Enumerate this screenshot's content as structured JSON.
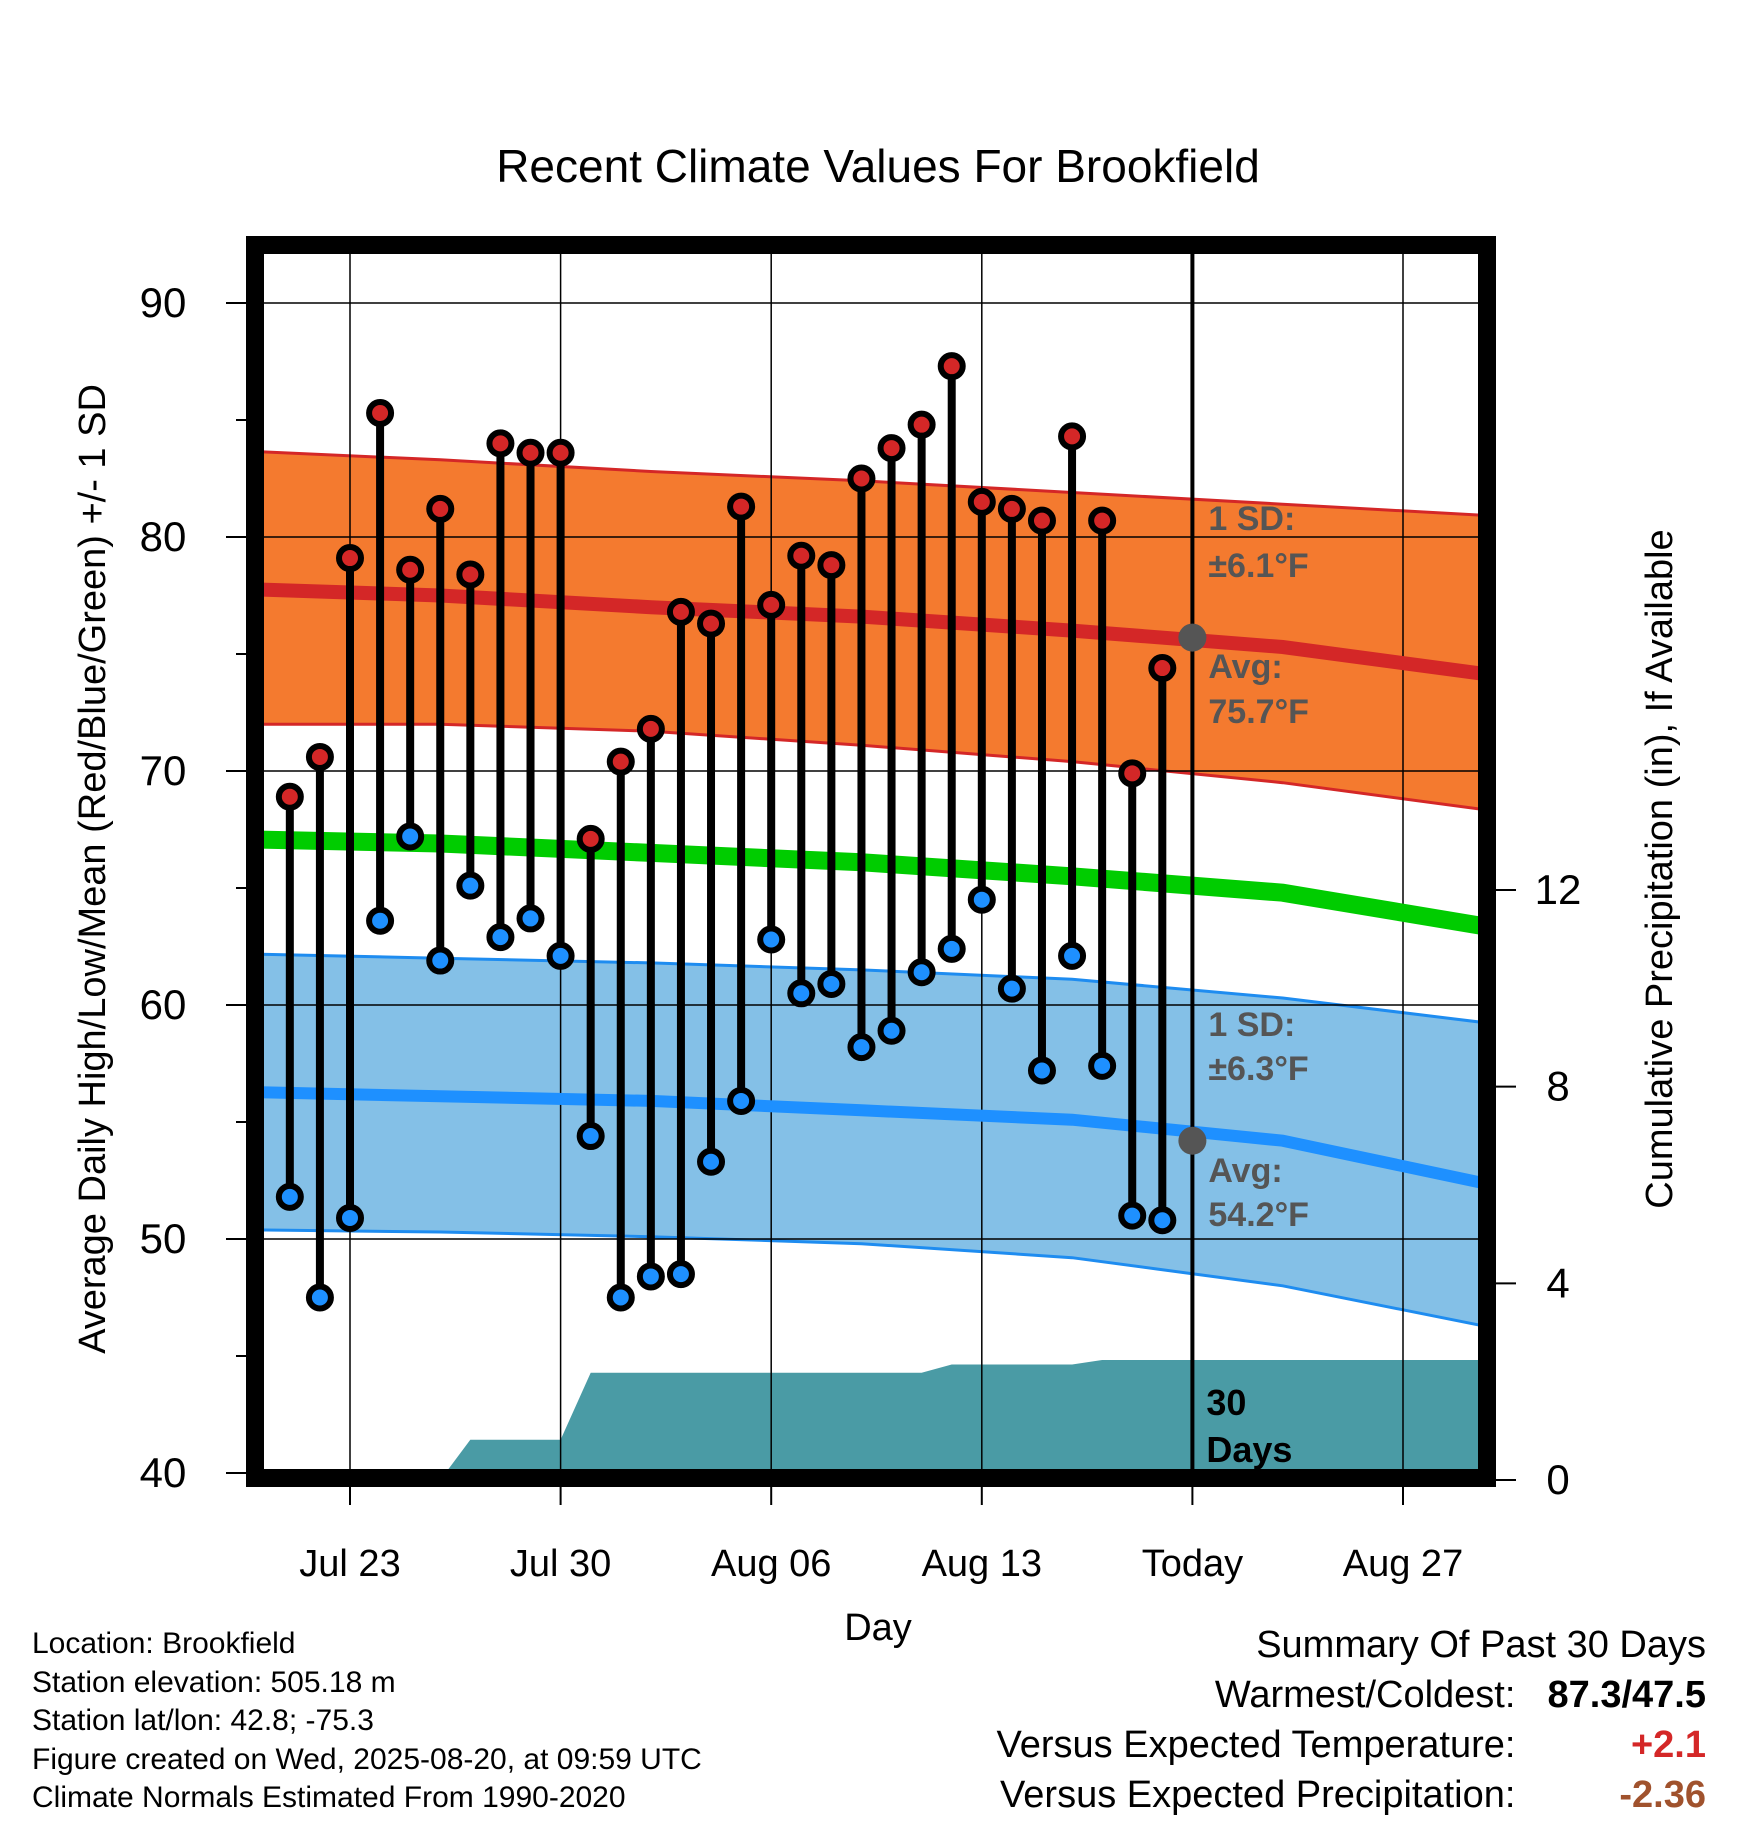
{
  "chart_data": {
    "type": "line",
    "title": "Recent Climate Values For Brookfield",
    "xlabel": "Day",
    "ylabel_left": "Average Daily High/Low/Mean (Red/Blue/Green) +/- 1 SD",
    "ylabel_right": "Cumulative Precipitation (in), If Available",
    "ylim": [
      40,
      90
    ],
    "y_ticks": [
      "40",
      "50",
      "60",
      "70",
      "80",
      "90"
    ],
    "y2lim": [
      0,
      12
    ],
    "y2_ticks": [
      "0",
      "4",
      "8",
      "12"
    ],
    "xlim": [
      "2025-07-19",
      "2025-08-30"
    ],
    "x_ticks": [
      {
        "date": "2025-07-23",
        "label": "Jul 23"
      },
      {
        "date": "2025-07-30",
        "label": "Jul 30"
      },
      {
        "date": "2025-08-06",
        "label": "Aug 06"
      },
      {
        "date": "2025-08-13",
        "label": "Aug 13"
      },
      {
        "date": "2025-08-20",
        "label": "Today"
      },
      {
        "date": "2025-08-27",
        "label": "Aug 27"
      }
    ],
    "today": "2025-08-20",
    "daily": {
      "dates": [
        "2025-07-21",
        "2025-07-22",
        "2025-07-23",
        "2025-07-24",
        "2025-07-25",
        "2025-07-26",
        "2025-07-27",
        "2025-07-28",
        "2025-07-29",
        "2025-07-30",
        "2025-07-31",
        "2025-08-01",
        "2025-08-02",
        "2025-08-03",
        "2025-08-04",
        "2025-08-05",
        "2025-08-06",
        "2025-08-07",
        "2025-08-08",
        "2025-08-09",
        "2025-08-10",
        "2025-08-11",
        "2025-08-12",
        "2025-08-13",
        "2025-08-14",
        "2025-08-15",
        "2025-08-16",
        "2025-08-17",
        "2025-08-18",
        "2025-08-19"
      ],
      "high": [
        68.9,
        70.6,
        79.1,
        85.3,
        78.6,
        81.2,
        78.4,
        84.0,
        83.6,
        83.6,
        67.1,
        70.4,
        71.8,
        76.8,
        76.3,
        81.3,
        77.1,
        79.2,
        78.8,
        82.5,
        83.8,
        84.8,
        87.3,
        81.5,
        81.2,
        80.7,
        84.3,
        80.7,
        69.9,
        74.4
      ],
      "low": [
        51.8,
        47.5,
        50.9,
        63.6,
        67.2,
        61.9,
        65.1,
        62.9,
        63.7,
        62.1,
        54.4,
        47.5,
        48.4,
        48.5,
        53.3,
        55.9,
        62.8,
        60.5,
        60.9,
        58.2,
        58.9,
        61.4,
        62.4,
        64.5,
        60.7,
        57.2,
        62.1,
        57.4,
        51.0,
        50.8
      ]
    },
    "normals": {
      "dates": [
        "2025-07-19",
        "2025-07-26",
        "2025-08-02",
        "2025-08-09",
        "2025-08-16",
        "2025-08-23",
        "2025-08-30"
      ],
      "high_avg": [
        77.8,
        77.5,
        77.0,
        76.6,
        76.0,
        75.3,
        74.1
      ],
      "high_upper": [
        83.7,
        83.3,
        82.8,
        82.4,
        81.9,
        81.4,
        80.9
      ],
      "high_lower": [
        72.0,
        72.0,
        71.7,
        71.1,
        70.4,
        69.5,
        68.3
      ],
      "mean": [
        67.1,
        66.9,
        66.5,
        66.1,
        65.5,
        64.8,
        63.3
      ],
      "low_avg": [
        56.3,
        56.1,
        55.9,
        55.5,
        55.1,
        54.2,
        52.3
      ],
      "low_upper": [
        62.2,
        62.0,
        61.8,
        61.5,
        61.1,
        60.3,
        59.2
      ],
      "low_lower": [
        50.4,
        50.3,
        50.1,
        49.8,
        49.2,
        48.0,
        46.2
      ]
    },
    "precip": {
      "dates": [
        "2025-07-19",
        "2025-07-26",
        "2025-07-27",
        "2025-07-30",
        "2025-07-31",
        "2025-08-11",
        "2025-08-12",
        "2025-08-16",
        "2025-08-17",
        "2025-08-30"
      ],
      "values": [
        0,
        0,
        0.82,
        0.82,
        2.18,
        2.18,
        2.35,
        2.35,
        2.44,
        2.44
      ]
    },
    "annotations": {
      "high_sd_label": "1 SD:",
      "high_sd_value": "±6.1°F",
      "high_avg_label": "Avg:",
      "high_avg_value": "75.7°F",
      "low_sd_label": "1 SD:",
      "low_sd_value": "±6.3°F",
      "low_avg_label": "Avg:",
      "low_avg_value": "54.2°F",
      "precip_label_1": "30",
      "precip_label_2": "Days",
      "today_high_avg": 75.7,
      "today_low_avg": 54.2
    },
    "colors": {
      "high_band": "#f47a2f",
      "high_line": "#d42727",
      "mean_line": "#00cc00",
      "low_band": "#84c0e7",
      "low_line": "#1e90ff",
      "low_edge": "#1e8cf0",
      "precip": "#4a9ba5",
      "high_marker": "#d42727",
      "low_marker": "#1e90ff",
      "annotation_text": "#555555",
      "today_marker": "#555555"
    }
  },
  "footer": {
    "location": "Location: Brookfield",
    "elevation": "Station elevation: 505.18 m",
    "latlon": "Station lat/lon: 42.8; -75.3",
    "created": "Figure created on Wed, 2025-08-20, at 09:59 UTC",
    "normals": "Climate Normals Estimated From 1990-2020"
  },
  "summary": {
    "title": "Summary Of Past 30 Days",
    "warm_cold_label": "Warmest/Coldest:",
    "warm_cold_value": "87.3/47.5",
    "temp_label": "Versus Expected Temperature:",
    "temp_value": "+2.1",
    "precip_label": "Versus Expected Precipitation:",
    "precip_value": "-2.36",
    "temp_color": "#d42727",
    "precip_color": "#a0522d"
  }
}
